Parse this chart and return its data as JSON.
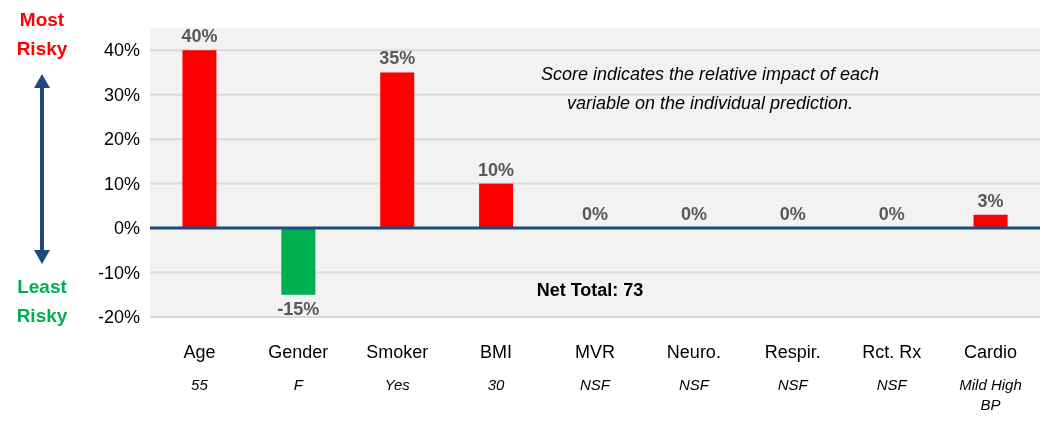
{
  "chart_data": {
    "type": "bar",
    "categories": [
      "Age",
      "Gender",
      "Smoker",
      "BMI",
      "MVR",
      "Neuro.",
      "Respir.",
      "Rct. Rx",
      "Cardio"
    ],
    "values": [
      40,
      -15,
      35,
      10,
      0,
      0,
      0,
      0,
      3
    ],
    "colors": [
      "#ff0000",
      "#00b050",
      "#ff0000",
      "#ff0000",
      "#ff0000",
      "#ff0000",
      "#ff0000",
      "#ff0000",
      "#ff0000"
    ],
    "value_labels": [
      "40%",
      "-15%",
      "35%",
      "10%",
      "0%",
      "0%",
      "0%",
      "0%",
      "3%"
    ],
    "ylim": [
      -20,
      45
    ],
    "yticks": [
      {
        "value": -20,
        "label": "-20%"
      },
      {
        "value": -10,
        "label": "-10%"
      },
      {
        "value": 0,
        "label": "0%"
      },
      {
        "value": 10,
        "label": "10%"
      },
      {
        "value": 20,
        "label": "20%"
      },
      {
        "value": 30,
        "label": "30%"
      },
      {
        "value": 40,
        "label": "40%"
      }
    ],
    "grid": "y",
    "ref_lines": [
      {
        "axis": "y",
        "value": 0,
        "color": "#1f497d"
      }
    ],
    "annotations": [
      "Score indicates the relative impact of each variable on the individual prediction.",
      "Net Total: 73",
      "Most Risky",
      "Least Risky",
      "55",
      "F",
      "Yes",
      "30",
      "NSF",
      "NSF",
      "NSF",
      "NSF",
      "Mild High BP"
    ]
  }
}
